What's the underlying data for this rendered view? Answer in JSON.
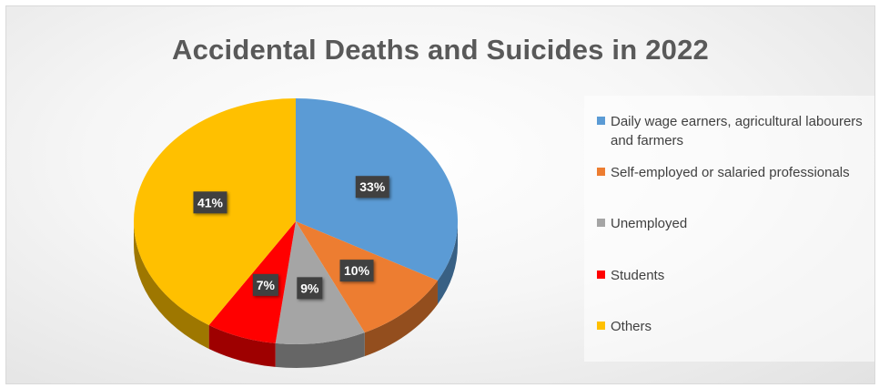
{
  "chart_data": {
    "type": "pie",
    "title": "Accidental Deaths and Suicides in 2022",
    "categories": [
      "Daily wage earners, agricultural labourers and farmers",
      "Self-employed or salaried professionals",
      "Unemployed",
      "Students",
      "Others"
    ],
    "values": [
      33,
      10,
      9,
      7,
      41
    ],
    "data_labels": [
      "33%",
      "10%",
      "9%",
      "7%",
      "41%"
    ],
    "colors": [
      "#5b9bd5",
      "#ed7d31",
      "#a5a5a5",
      "#ff0000",
      "#ffc000"
    ],
    "legend_position": "right",
    "style": "3d-pie"
  }
}
